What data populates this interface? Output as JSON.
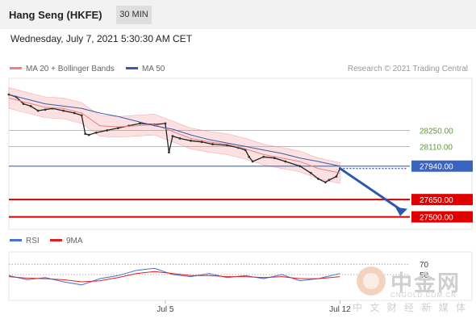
{
  "header": {
    "title": "Hang Seng (HKFE)",
    "interval": "30 MIN"
  },
  "datetime": "Wednesday, July 7, 2021 5:30:30 AM CET",
  "legend": {
    "bollinger": {
      "label": "MA 20 + Bollinger Bands",
      "color": "#f08080"
    },
    "ma50": {
      "label": "MA 50",
      "color": "#3a5ca8"
    },
    "rsi": {
      "label": "RSI",
      "color": "#4a6fd6"
    },
    "rsi_ma": {
      "label": "9MA",
      "color": "#e02020"
    }
  },
  "research": "Research © 2021 Trading Central",
  "watermark": {
    "name": "中金网",
    "url": "CNGOLD.COM.CN",
    "tagline": "中 文 财 经 新 媒 体"
  },
  "chart_data": [
    {
      "type": "line",
      "title": "Hang Seng (HKFE)",
      "ylim": [
        27350,
        28680
      ],
      "x_tick_labels": [
        {
          "x": 0.43,
          "label": "Jul 5"
        },
        {
          "x": 0.91,
          "label": "Jul 12"
        }
      ],
      "series": [
        {
          "name": "price",
          "color": "#222222",
          "x": [
            0,
            0.02,
            0.04,
            0.06,
            0.08,
            0.1,
            0.12,
            0.15,
            0.18,
            0.2,
            0.21,
            0.22,
            0.24,
            0.27,
            0.3,
            0.33,
            0.36,
            0.4,
            0.43,
            0.44,
            0.45,
            0.47,
            0.5,
            0.53,
            0.56,
            0.6,
            0.63,
            0.65,
            0.66,
            0.67,
            0.7,
            0.73,
            0.76,
            0.8,
            0.83,
            0.85,
            0.87,
            0.88,
            0.9,
            0.91
          ],
          "values": [
            28560,
            28540,
            28480,
            28460,
            28420,
            28430,
            28440,
            28420,
            28400,
            28380,
            28220,
            28210,
            28230,
            28250,
            28270,
            28290,
            28310,
            28300,
            28310,
            28060,
            28200,
            28180,
            28160,
            28150,
            28130,
            28120,
            28100,
            28080,
            28020,
            27980,
            28020,
            28010,
            27980,
            27940,
            27880,
            27830,
            27800,
            27820,
            27850,
            27920
          ]
        },
        {
          "name": "MA 20",
          "color": "#f08080",
          "x": [
            0,
            0.05,
            0.1,
            0.15,
            0.2,
            0.25,
            0.3,
            0.35,
            0.4,
            0.45,
            0.5,
            0.55,
            0.6,
            0.65,
            0.7,
            0.75,
            0.8,
            0.85,
            0.91
          ],
          "values": [
            28530,
            28490,
            28450,
            28440,
            28400,
            28290,
            28280,
            28290,
            28300,
            28240,
            28180,
            28150,
            28130,
            28090,
            28040,
            28010,
            27980,
            27920,
            27880
          ]
        },
        {
          "name": "MA 50",
          "color": "#3a5ca8",
          "x": [
            0,
            0.05,
            0.1,
            0.15,
            0.2,
            0.25,
            0.3,
            0.35,
            0.4,
            0.45,
            0.5,
            0.55,
            0.6,
            0.65,
            0.7,
            0.75,
            0.8,
            0.85,
            0.91
          ],
          "values": [
            28560,
            28520,
            28480,
            28460,
            28440,
            28400,
            28370,
            28330,
            28290,
            28260,
            28210,
            28170,
            28140,
            28110,
            28080,
            28050,
            28010,
            27980,
            27940
          ]
        }
      ],
      "horizontal_levels": [
        {
          "value": 28250,
          "label": "28250.00",
          "kind": "resistance"
        },
        {
          "value": 28110,
          "label": "28110.00",
          "kind": "resistance"
        },
        {
          "value": 27940,
          "label": "27940.00",
          "kind": "pivot"
        },
        {
          "value": 27650,
          "label": "27650.00",
          "kind": "support"
        },
        {
          "value": 27500,
          "label": "27500.00",
          "kind": "support"
        }
      ]
    },
    {
      "type": "line",
      "title": "RSI",
      "ylim": [
        0,
        100
      ],
      "y_tick_labels": [
        {
          "value": 70,
          "label": "70"
        },
        {
          "value": 50,
          "label": "50"
        }
      ],
      "series": [
        {
          "name": "RSI",
          "color": "#4a6fd6",
          "x": [
            0,
            0.05,
            0.1,
            0.15,
            0.2,
            0.25,
            0.3,
            0.35,
            0.4,
            0.45,
            0.5,
            0.55,
            0.6,
            0.65,
            0.7,
            0.75,
            0.8,
            0.85,
            0.91
          ],
          "values": [
            48,
            40,
            44,
            36,
            30,
            42,
            48,
            58,
            62,
            50,
            46,
            52,
            44,
            48,
            42,
            50,
            38,
            42,
            52
          ]
        },
        {
          "name": "9MA",
          "color": "#e02020",
          "x": [
            0,
            0.05,
            0.1,
            0.15,
            0.2,
            0.25,
            0.3,
            0.35,
            0.4,
            0.45,
            0.5,
            0.55,
            0.6,
            0.65,
            0.7,
            0.75,
            0.8,
            0.85,
            0.91
          ],
          "values": [
            46,
            43,
            42,
            40,
            36,
            38,
            44,
            52,
            56,
            52,
            48,
            48,
            46,
            46,
            44,
            46,
            42,
            42,
            46
          ]
        }
      ]
    }
  ]
}
